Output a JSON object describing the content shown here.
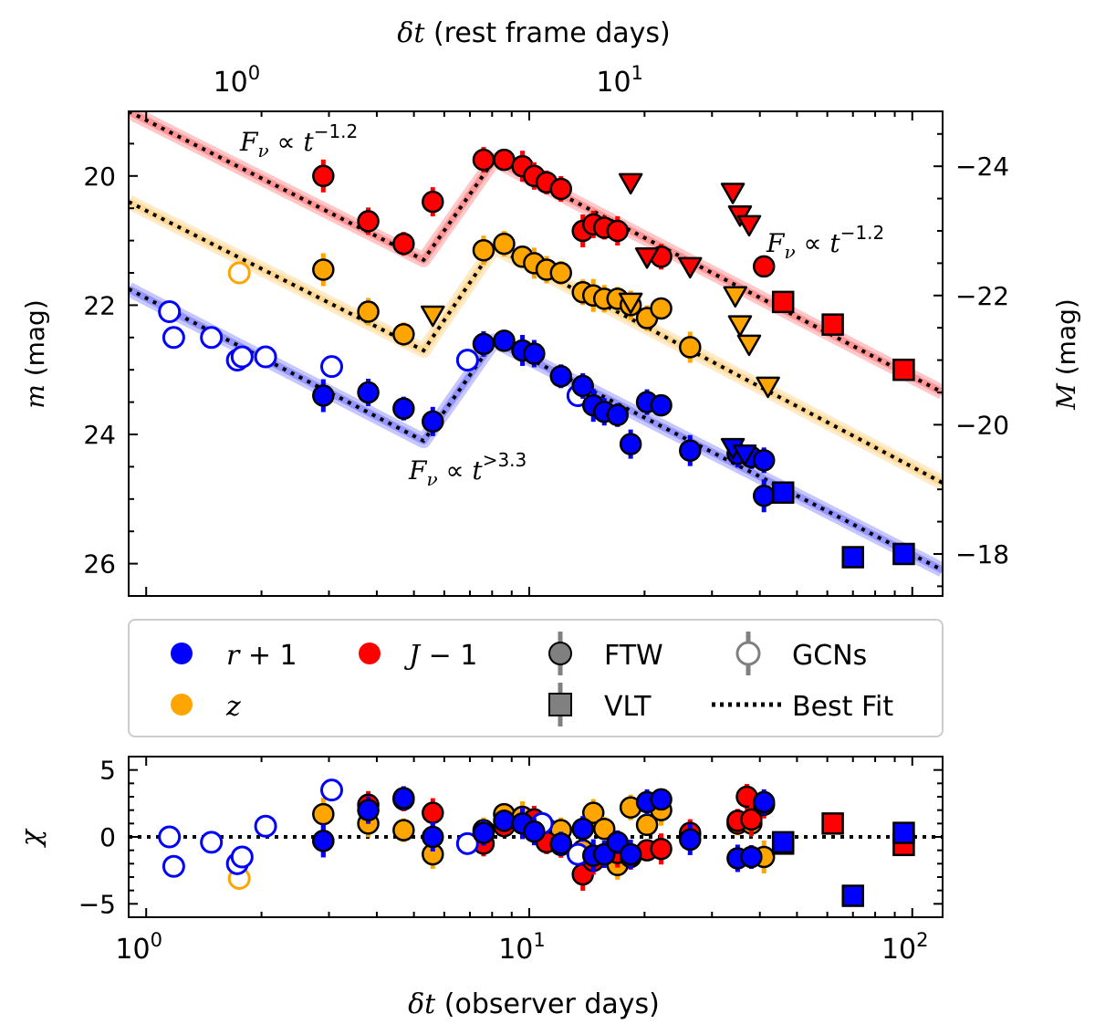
{
  "chart_data": [
    {
      "type": "scatter",
      "panel": "light curve",
      "xscale": "log",
      "xlabel": "δt (observer days)",
      "xlabel_top": "δt (rest frame days)",
      "x_top_ticks": [
        "10^0",
        "10^1"
      ],
      "x_top_tick_values_observer": [
        1.8,
        18
      ],
      "xlim": [
        0.9,
        120
      ],
      "ylabel": "m (mag)",
      "ylim": [
        26.5,
        19
      ],
      "yticks": [
        20,
        22,
        24,
        26
      ],
      "ylabel_right": "M (mag)",
      "yticks_right": [
        -24,
        -22,
        -20,
        -18
      ],
      "yticks_right_m": [
        19.85,
        21.85,
        23.85,
        25.85
      ],
      "annotations": [
        {
          "text": "F_ν ∝ t^{-1.2}",
          "x": 1.3,
          "y": 19.6
        },
        {
          "text": "F_ν ∝ t^{-1.2}",
          "x": 43,
          "y": 21.2
        },
        {
          "text": "F_ν ∝ t^{>3.3}",
          "x": 4.2,
          "y": 24.6
        }
      ],
      "series": [
        {
          "name": "r + 1",
          "color": "#0000ff",
          "ftw": [
            [
              2.9,
              23.4
            ],
            [
              3.8,
              23.35
            ],
            [
              4.7,
              23.6
            ],
            [
              5.6,
              23.8
            ],
            [
              7.6,
              22.6
            ],
            [
              8.6,
              22.55
            ],
            [
              9.6,
              22.7
            ],
            [
              10.3,
              22.75
            ],
            [
              12.1,
              23.1
            ],
            [
              13.8,
              23.25
            ],
            [
              14.7,
              23.55
            ],
            [
              15.7,
              23.65
            ],
            [
              17.0,
              23.7
            ],
            [
              18.4,
              24.15
            ],
            [
              20.3,
              23.5
            ],
            [
              22.1,
              23.55
            ],
            [
              26.3,
              24.25
            ],
            [
              35.0,
              24.3
            ],
            [
              38.0,
              24.35
            ],
            [
              41.0,
              24.4
            ],
            [
              41.0,
              24.95
            ]
          ],
          "vlt": [
            [
              46,
              24.9
            ],
            [
              70,
              25.9
            ],
            [
              95,
              25.85
            ]
          ],
          "gcn": [
            [
              1.15,
              22.1
            ],
            [
              1.18,
              22.5
            ],
            [
              1.48,
              22.5
            ],
            [
              1.73,
              22.85
            ],
            [
              1.78,
              22.8
            ],
            [
              2.05,
              22.8
            ],
            [
              3.05,
              22.95
            ],
            [
              6.9,
              22.85
            ],
            [
              13.4,
              23.4
            ]
          ],
          "upper_limits": [
            [
              34,
              24.2
            ],
            [
              36.5,
              24.3
            ]
          ],
          "fit": [
            [
              0.9,
              21.75
            ],
            [
              5.3,
              24.1
            ],
            [
              8.1,
              22.55
            ],
            [
              120,
              26.1
            ]
          ]
        },
        {
          "name": "z",
          "color": "#ffa500",
          "ftw": [
            [
              2.9,
              21.45
            ],
            [
              3.8,
              22.1
            ],
            [
              4.7,
              22.45
            ],
            [
              7.6,
              21.15
            ],
            [
              8.6,
              21.05
            ],
            [
              9.6,
              21.25
            ],
            [
              10.3,
              21.35
            ],
            [
              11.1,
              21.45
            ],
            [
              12.1,
              21.5
            ],
            [
              13.8,
              21.8
            ],
            [
              14.7,
              21.85
            ],
            [
              15.7,
              21.9
            ],
            [
              17.0,
              21.9
            ],
            [
              18.4,
              22.0
            ],
            [
              20.3,
              22.2
            ],
            [
              22.1,
              22.05
            ],
            [
              26.3,
              22.65
            ]
          ],
          "vlt": [],
          "gcn": [
            [
              1.75,
              21.5
            ]
          ],
          "upper_limits": [
            [
              5.6,
              22.15
            ],
            [
              18.4,
              21.95
            ],
            [
              34.5,
              21.85
            ],
            [
              35.5,
              22.3
            ],
            [
              37.5,
              22.6
            ],
            [
              42,
              23.25
            ]
          ],
          "fit": [
            [
              0.9,
              20.4
            ],
            [
              5.3,
              22.7
            ],
            [
              8.1,
              21.1
            ],
            [
              120,
              24.75
            ]
          ]
        },
        {
          "name": "J − 1",
          "color": "#ff0000",
          "ftw": [
            [
              2.9,
              20.0
            ],
            [
              3.8,
              20.7
            ],
            [
              4.7,
              21.05
            ],
            [
              5.6,
              20.4
            ],
            [
              7.6,
              19.75
            ],
            [
              8.6,
              19.75
            ],
            [
              9.6,
              19.85
            ],
            [
              10.3,
              20.0
            ],
            [
              11.1,
              20.1
            ],
            [
              12.1,
              20.2
            ],
            [
              13.8,
              20.85
            ],
            [
              14.7,
              20.75
            ],
            [
              15.7,
              20.8
            ],
            [
              17.0,
              20.85
            ],
            [
              22.1,
              21.25
            ],
            [
              41.0,
              21.4
            ]
          ],
          "vlt": [
            [
              46,
              21.95
            ],
            [
              62,
              22.3
            ],
            [
              95,
              23.0
            ]
          ],
          "gcn": [],
          "upper_limits": [
            [
              18.4,
              20.1
            ],
            [
              20.3,
              21.25
            ],
            [
              26.3,
              21.4
            ],
            [
              34,
              20.25
            ],
            [
              35.5,
              20.6
            ],
            [
              37.5,
              20.75
            ]
          ],
          "fit": [
            [
              0.9,
              19.0
            ],
            [
              5.3,
              21.3
            ],
            [
              8.1,
              19.75
            ],
            [
              120,
              23.35
            ]
          ]
        }
      ],
      "legend": {
        "placement": "below top panel",
        "entries": [
          "r + 1",
          "J − 1",
          "FTW",
          "GCNs",
          "z",
          "VLT",
          "Best Fit"
        ]
      }
    },
    {
      "type": "scatter",
      "panel": "residuals",
      "xscale": "log",
      "xlabel": "δt (observer days)",
      "x_ticks": [
        "10^0",
        "10^1",
        "10^2"
      ],
      "xlim": [
        0.9,
        120
      ],
      "ylabel": "χ",
      "ylim": [
        -6,
        6
      ],
      "yticks": [
        -5,
        0,
        5
      ],
      "series": [
        {
          "name": "r + 1",
          "color": "#0000ff",
          "ftw": [
            [
              2.9,
              -0.3
            ],
            [
              3.8,
              2.0
            ],
            [
              4.7,
              2.9
            ],
            [
              5.6,
              0.0
            ],
            [
              7.6,
              0.3
            ],
            [
              8.6,
              1.2
            ],
            [
              9.6,
              1.0
            ],
            [
              10.3,
              0.4
            ],
            [
              12.1,
              -0.5
            ],
            [
              13.8,
              0.6
            ],
            [
              14.7,
              -1.4
            ],
            [
              15.7,
              -1.3
            ],
            [
              17.0,
              -0.4
            ],
            [
              18.4,
              -1.3
            ],
            [
              20.3,
              2.6
            ],
            [
              22.1,
              2.8
            ],
            [
              26.3,
              -0.2
            ],
            [
              35.0,
              -1.6
            ],
            [
              38.0,
              -1.5
            ],
            [
              41.0,
              2.6
            ]
          ],
          "vlt": [
            [
              46,
              -0.4
            ],
            [
              70,
              -4.4
            ],
            [
              95,
              0.3
            ]
          ],
          "gcn": [
            [
              1.15,
              0.0
            ],
            [
              1.18,
              -2.2
            ],
            [
              1.48,
              -0.4
            ],
            [
              1.73,
              -2.0
            ],
            [
              1.78,
              -1.5
            ],
            [
              2.05,
              0.8
            ],
            [
              3.05,
              3.5
            ],
            [
              6.9,
              -0.5
            ],
            [
              10.8,
              1.0
            ],
            [
              13.4,
              -1.3
            ]
          ]
        },
        {
          "name": "z",
          "color": "#ffa500",
          "ftw": [
            [
              2.9,
              1.7
            ],
            [
              3.8,
              1.0
            ],
            [
              4.7,
              0.5
            ],
            [
              5.6,
              -1.3
            ],
            [
              7.6,
              0.5
            ],
            [
              8.6,
              1.7
            ],
            [
              9.6,
              1.5
            ],
            [
              10.3,
              1.3
            ],
            [
              11.1,
              0.6
            ],
            [
              12.1,
              0.5
            ],
            [
              13.8,
              -1.0
            ],
            [
              14.7,
              1.8
            ],
            [
              15.7,
              0.6
            ],
            [
              17.0,
              -2.1
            ],
            [
              18.4,
              2.2
            ],
            [
              20.3,
              0.9
            ],
            [
              22.1,
              2.0
            ],
            [
              26.3,
              0.2
            ],
            [
              35.0,
              1.0
            ],
            [
              38.0,
              1.0
            ],
            [
              41.0,
              -1.5
            ]
          ],
          "vlt": [],
          "gcn": [
            [
              1.75,
              -3.1
            ]
          ]
        },
        {
          "name": "J − 1",
          "color": "#ff0000",
          "ftw": [
            [
              2.9,
              -0.3
            ],
            [
              3.8,
              2.4
            ],
            [
              4.7,
              2.8
            ],
            [
              5.6,
              1.8
            ],
            [
              7.6,
              -0.5
            ],
            [
              8.6,
              0.8
            ],
            [
              9.6,
              1.0
            ],
            [
              10.3,
              1.3
            ],
            [
              11.1,
              -0.4
            ],
            [
              12.1,
              -0.6
            ],
            [
              13.8,
              -2.8
            ],
            [
              14.7,
              -1.8
            ],
            [
              15.7,
              -1.3
            ],
            [
              17.0,
              -1.2
            ],
            [
              18.4,
              -1.5
            ],
            [
              20.3,
              -1.0
            ],
            [
              22.1,
              -0.9
            ],
            [
              26.3,
              0.3
            ],
            [
              35.0,
              1.2
            ],
            [
              37.0,
              3.0
            ],
            [
              38.0,
              1.3
            ],
            [
              41.0,
              2.4
            ]
          ],
          "vlt": [
            [
              46,
              -0.5
            ],
            [
              62,
              1.0
            ],
            [
              95,
              -0.6
            ]
          ],
          "gcn": []
        }
      ],
      "reference_line": 0
    }
  ]
}
